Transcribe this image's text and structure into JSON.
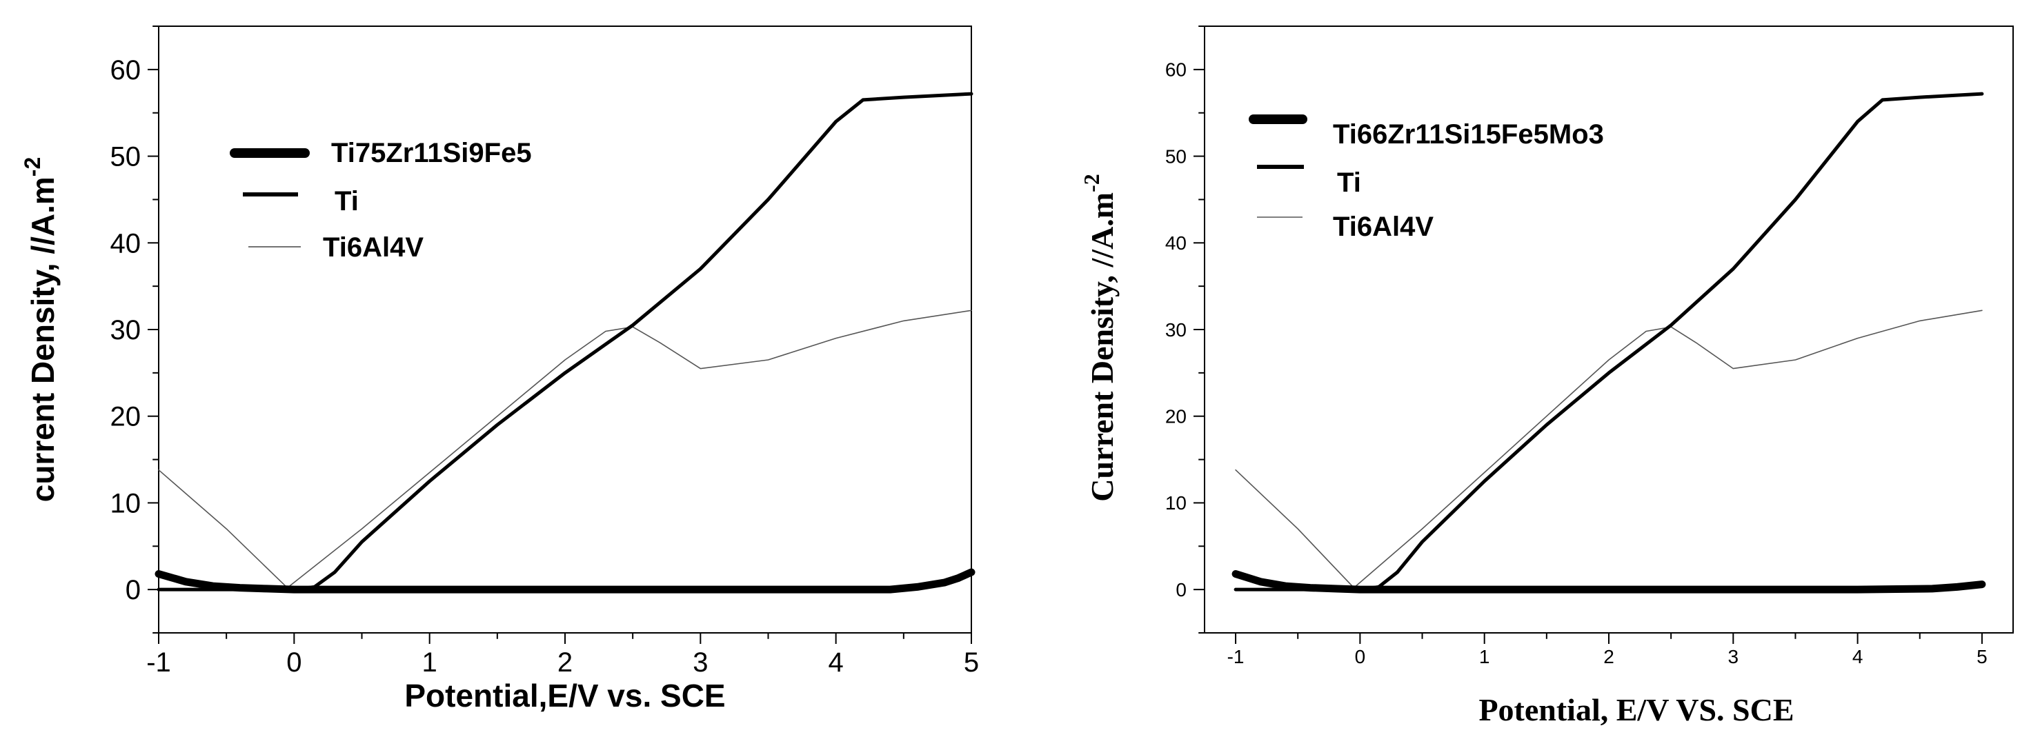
{
  "chart_data": [
    {
      "type": "line",
      "xlabel": "Potential,E/V vs. SCE",
      "ylabel": "current Density, //A.m",
      "ylabel_sup": "-2",
      "xlim": [
        -1,
        5
      ],
      "ylim": [
        -5,
        65
      ],
      "xticks": [
        "-1",
        "0",
        "1",
        "2",
        "3",
        "4",
        "5"
      ],
      "yticks": [
        "0",
        "10",
        "20",
        "30",
        "40",
        "50",
        "60"
      ],
      "grid": false,
      "legend_position": "top-left",
      "series": [
        {
          "name": "Ti75Zr11Si9Fe5",
          "style": "thick",
          "x": [
            -1,
            -0.8,
            -0.6,
            -0.4,
            -0.2,
            0,
            1,
            2,
            3,
            4,
            4.4,
            4.6,
            4.8,
            4.9,
            5
          ],
          "y": [
            1.8,
            0.9,
            0.4,
            0.2,
            0.1,
            0,
            0,
            0,
            0,
            0,
            0,
            0.3,
            0.8,
            1.3,
            2.0
          ]
        },
        {
          "name": "Ti",
          "style": "medium",
          "x": [
            -1,
            0,
            0.15,
            0.3,
            0.5,
            1,
            1.5,
            2,
            2.5,
            3,
            3.5,
            4,
            4.2,
            4.5,
            5
          ],
          "y": [
            0,
            0,
            0.3,
            2.0,
            5.5,
            12.5,
            19.0,
            25.0,
            30.5,
            37.0,
            45.0,
            54.0,
            56.5,
            56.8,
            57.2
          ]
        },
        {
          "name": "Ti6Al4V",
          "style": "thin",
          "x": [
            -1,
            -0.5,
            -0.05,
            0.5,
            1,
            1.5,
            2,
            2.3,
            2.5,
            2.7,
            3,
            3.5,
            4,
            4.5,
            5
          ],
          "y": [
            13.8,
            7.0,
            0.2,
            7.0,
            13.5,
            20.0,
            26.5,
            29.8,
            30.3,
            28.5,
            25.5,
            26.5,
            29.0,
            31.0,
            32.2
          ]
        }
      ]
    },
    {
      "type": "line",
      "xlabel": "Potential, E/V VS. SCE",
      "ylabel": "Current Density, //A.m",
      "ylabel_sup": "-2",
      "xlim": [
        -1.25,
        5.25
      ],
      "ylim": [
        -5,
        65
      ],
      "xticks": [
        "-1",
        "0",
        "1",
        "2",
        "3",
        "4",
        "5"
      ],
      "yticks": [
        "0",
        "10",
        "20",
        "30",
        "40",
        "50",
        "60"
      ],
      "grid": false,
      "legend_position": "top-left",
      "series": [
        {
          "name": "Ti66Zr11Si15Fe5Mo3",
          "style": "thick",
          "x": [
            -1,
            -0.8,
            -0.6,
            -0.4,
            -0.2,
            0,
            1,
            2,
            3,
            4,
            4.6,
            4.8,
            5
          ],
          "y": [
            1.8,
            0.9,
            0.4,
            0.2,
            0.1,
            0,
            0,
            0,
            0,
            0,
            0.1,
            0.3,
            0.6
          ]
        },
        {
          "name": "Ti",
          "style": "medium",
          "x": [
            -1,
            0,
            0.15,
            0.3,
            0.5,
            1,
            1.5,
            2,
            2.5,
            3,
            3.5,
            4,
            4.2,
            4.5,
            5
          ],
          "y": [
            0,
            0,
            0.3,
            2.0,
            5.5,
            12.5,
            19.0,
            25.0,
            30.5,
            37.0,
            45.0,
            54.0,
            56.5,
            56.8,
            57.2
          ]
        },
        {
          "name": "Ti6Al4V",
          "style": "thin",
          "x": [
            -1,
            -0.5,
            -0.05,
            0.5,
            1,
            1.5,
            2,
            2.3,
            2.5,
            2.7,
            3,
            3.5,
            4,
            4.5,
            5
          ],
          "y": [
            13.8,
            7.0,
            0.2,
            7.0,
            13.5,
            20.0,
            26.5,
            29.8,
            30.3,
            28.5,
            25.5,
            26.5,
            29.0,
            31.0,
            32.2
          ]
        }
      ]
    }
  ]
}
